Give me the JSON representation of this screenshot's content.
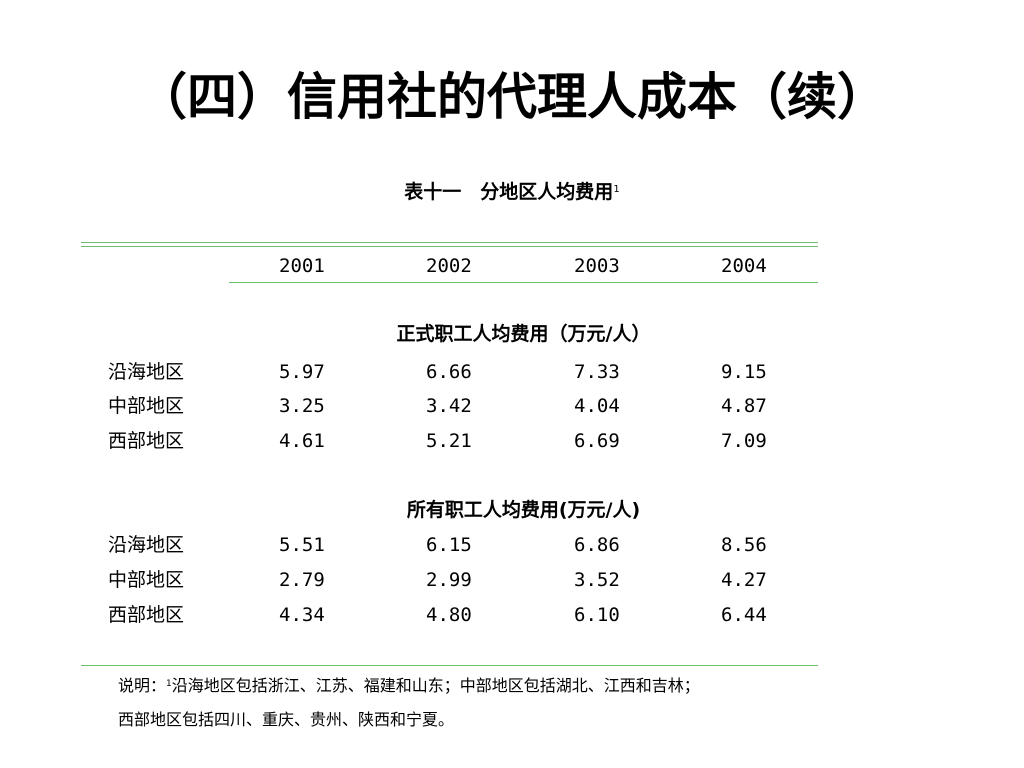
{
  "title": "（四）信用社的代理人成本（续）",
  "table": {
    "caption": "表十一　分地区人均费用",
    "caption_footnote_mark": "1",
    "years": [
      "2001",
      "2002",
      "2003",
      "2004"
    ],
    "sections": [
      {
        "heading": "正式职工人均费用（万元/人）",
        "rows": [
          {
            "region": "沿海地区",
            "values": [
              "5.97",
              "6.66",
              "7.33",
              "9.15"
            ]
          },
          {
            "region": "中部地区",
            "values": [
              "3.25",
              "3.42",
              "4.04",
              "4.87"
            ]
          },
          {
            "region": "西部地区",
            "values": [
              "4.61",
              "5.21",
              "6.69",
              "7.09"
            ]
          }
        ]
      },
      {
        "heading": "所有职工人均费用(万元/人)",
        "rows": [
          {
            "region": "沿海地区",
            "values": [
              "5.51",
              "6.15",
              "6.86",
              "8.56"
            ]
          },
          {
            "region": "中部地区",
            "values": [
              "2.79",
              "2.99",
              "3.52",
              "4.27"
            ]
          },
          {
            "region": "西部地区",
            "values": [
              "4.34",
              "4.80",
              "6.10",
              "6.44"
            ]
          }
        ]
      }
    ]
  },
  "note": {
    "prefix": "说明：",
    "mark": "1",
    "line1": "沿海地区包括浙江、江苏、福建和山东；中部地区包括湖北、江西和吉林；",
    "line2": "西部地区包括四川、重庆、贵州、陕西和宁夏。"
  },
  "colors": {
    "rule": "#6cc06c"
  }
}
